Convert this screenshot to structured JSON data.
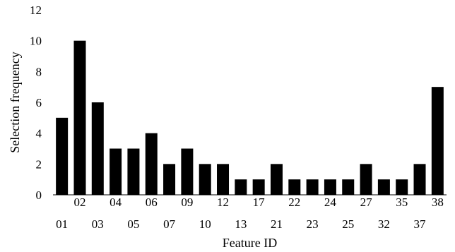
{
  "chart_data": {
    "type": "bar",
    "title": "",
    "xlabel": "Feature ID",
    "ylabel": "Selection frequency",
    "ylim": [
      0,
      12
    ],
    "yticks": [
      "0",
      "2",
      "4",
      "6",
      "8",
      "10",
      "12"
    ],
    "grid": false,
    "legend": "none",
    "categories": [
      "01",
      "02",
      "03",
      "04",
      "05",
      "06",
      "07",
      "09",
      "10",
      "12",
      "13",
      "17",
      "21",
      "22",
      "23",
      "24",
      "25",
      "27",
      "32",
      "35",
      "37",
      "38"
    ],
    "values": [
      5,
      10,
      6,
      3,
      3,
      4,
      2,
      3,
      2,
      2,
      1,
      1,
      2,
      1,
      1,
      1,
      1,
      2,
      1,
      1,
      2,
      7
    ],
    "bar_color": "#000000",
    "axis_color": "#000000"
  }
}
